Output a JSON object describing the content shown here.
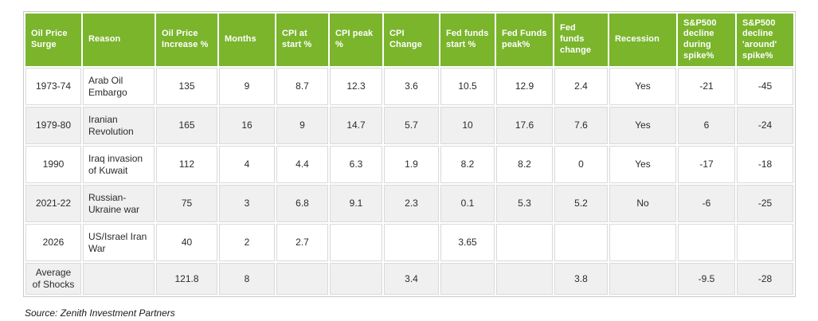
{
  "table": {
    "columns": [
      "Oil Price Surge",
      "Reason",
      "Oil Price Increase %",
      "Months",
      "CPI at start %",
      "CPI peak %",
      "CPI Change",
      "Fed funds start %",
      "Fed Funds peak%",
      "Fed funds change",
      "Recession",
      "S&P500 decline during spike%",
      "S&P500 decline 'around' spike%"
    ],
    "rows": [
      [
        "1973-74",
        "Arab Oil Embargo",
        "135",
        "9",
        "8.7",
        "12.3",
        "3.6",
        "10.5",
        "12.9",
        "2.4",
        "Yes",
        "-21",
        "-45"
      ],
      [
        "1979-80",
        "Iranian Revolution",
        "165",
        "16",
        "9",
        "14.7",
        "5.7",
        "10",
        "17.6",
        "7.6",
        "Yes",
        "6",
        "-24"
      ],
      [
        "1990",
        "Iraq invasion of Kuwait",
        "112",
        "4",
        "4.4",
        "6.3",
        "1.9",
        "8.2",
        "8.2",
        "0",
        "Yes",
        "-17",
        "-18"
      ],
      [
        "2021-22",
        "Russian-Ukraine war",
        "75",
        "3",
        "6.8",
        "9.1",
        "2.3",
        "0.1",
        "5.3",
        "5.2",
        "No",
        "-6",
        "-25"
      ],
      [
        "2026",
        "US/Israel Iran War",
        "40",
        "2",
        "2.7",
        "",
        "",
        "3.65",
        "",
        "",
        "",
        "",
        ""
      ],
      [
        "Average of Shocks",
        "",
        "121.8",
        "8",
        "",
        "",
        "3.4",
        "",
        "",
        "3.8",
        "",
        "-9.5",
        "-28"
      ]
    ]
  },
  "source": "Source: Zenith Investment Partners",
  "colors": {
    "header_bg": "#7ab52c",
    "header_text": "#ffffff",
    "stripe": "#f0f0f0",
    "outer_border": "#c9c9c9",
    "cell_border": "#d9d9d9",
    "body_text": "#2b2b2b"
  }
}
